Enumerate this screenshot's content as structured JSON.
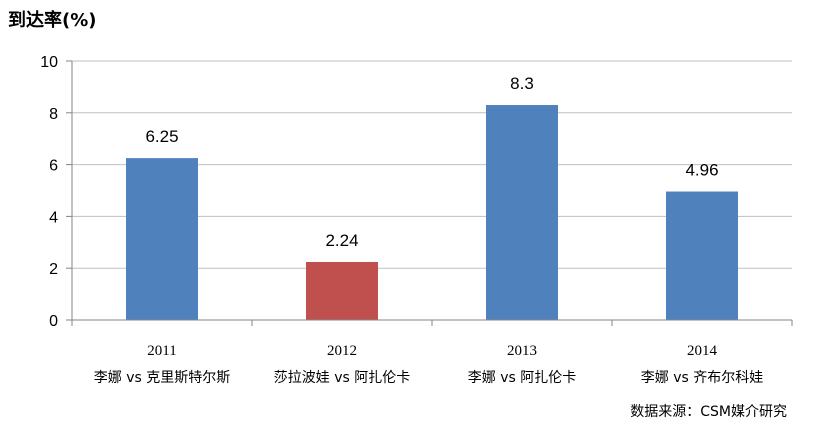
{
  "chart_data": {
    "type": "bar",
    "ylabel": "到达率(%)",
    "ylim": [
      0,
      10
    ],
    "yticks": [
      0,
      2,
      4,
      6,
      8,
      10
    ],
    "grid": true,
    "categories": [
      {
        "year": "2011",
        "match": "李娜 vs 克里斯特尔斯"
      },
      {
        "year": "2012",
        "match": "莎拉波娃 vs 阿扎伦卡"
      },
      {
        "year": "2013",
        "match": "李娜 vs 阿扎伦卡"
      },
      {
        "year": "2014",
        "match": "李娜 vs 齐布尔科娃"
      }
    ],
    "values": [
      6.25,
      2.24,
      8.3,
      4.96
    ],
    "value_labels": [
      "6.25",
      "2.24",
      "8.3",
      "4.96"
    ],
    "bar_colors": [
      "#4F81BD",
      "#C0504D",
      "#4F81BD",
      "#4F81BD"
    ],
    "source": "数据来源：CSM媒介研究"
  }
}
